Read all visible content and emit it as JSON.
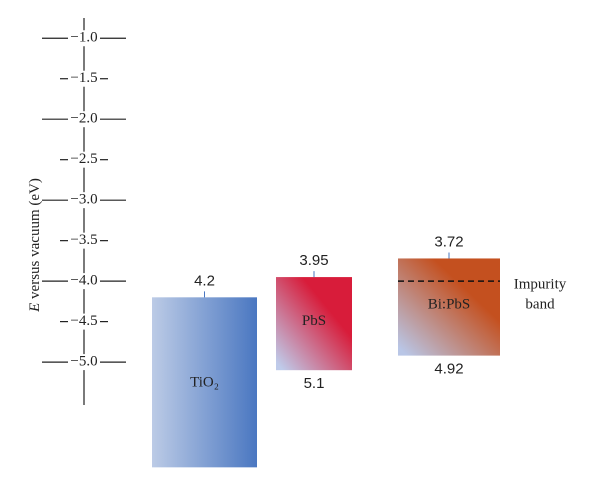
{
  "chart_data": {
    "type": "band-diagram",
    "ylabel": {
      "symbol": "E",
      "text": " versus vacuum (eV)"
    },
    "ylim": [
      -0.75,
      -5.53
    ],
    "yticks": [
      {
        "value": -1.0,
        "label": "−1.0"
      },
      {
        "value": -1.5,
        "label": "−1.5"
      },
      {
        "value": -2.0,
        "label": "−2.0"
      },
      {
        "value": -2.5,
        "label": "−2.5"
      },
      {
        "value": -3.0,
        "label": "−3.0"
      },
      {
        "value": -3.5,
        "label": "−3.5"
      },
      {
        "value": -4.0,
        "label": "−4.0"
      },
      {
        "value": -4.5,
        "label": "−4.5"
      },
      {
        "value": -5.0,
        "label": "−5.0"
      }
    ],
    "series": [
      {
        "name": "TiO₂",
        "top": -4.2,
        "bottom": -6.3,
        "top_label": "4.2",
        "bottom_label": null,
        "colors": [
          "#bccbe6",
          "#4a77c1"
        ],
        "direction": "horizontal"
      },
      {
        "name": "PbS",
        "top": -3.95,
        "bottom": -5.1,
        "top_label": "3.95",
        "bottom_label": "5.1",
        "colors": [
          "#bfcbea",
          "#d81c3a"
        ],
        "direction": "diagonal"
      },
      {
        "name": "Bi:PbS",
        "top": -3.72,
        "bottom": -4.92,
        "top_label": "3.72",
        "bottom_label": "4.92",
        "colors": [
          "#b9c6e6",
          "#c4501f"
        ],
        "direction": "diagonal"
      }
    ],
    "impurity_band": {
      "value": -4.0,
      "label": [
        "Impurity",
        "band"
      ]
    }
  }
}
